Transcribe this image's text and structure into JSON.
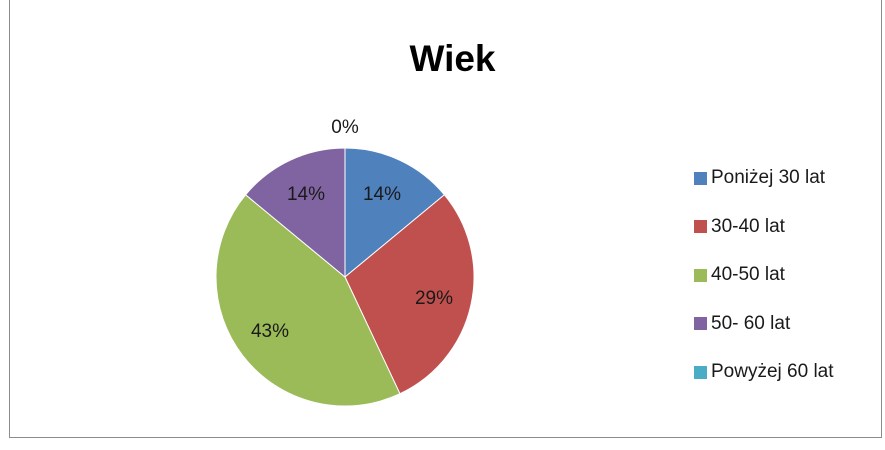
{
  "chart_data": {
    "type": "pie",
    "title": "Wiek",
    "categories": [
      "Poniżej 30 lat",
      "30-40 lat",
      "40-50 lat",
      "50- 60 lat",
      "Powyżej 60 lat"
    ],
    "values": [
      14,
      29,
      43,
      14,
      0
    ],
    "data_labels": [
      "14%",
      "29%",
      "43%",
      "14%",
      "0%"
    ],
    "colors": [
      "#4f81bd",
      "#c0504d",
      "#9bbb59",
      "#8064a2",
      "#4bacc6"
    ],
    "legend_position": "right"
  }
}
